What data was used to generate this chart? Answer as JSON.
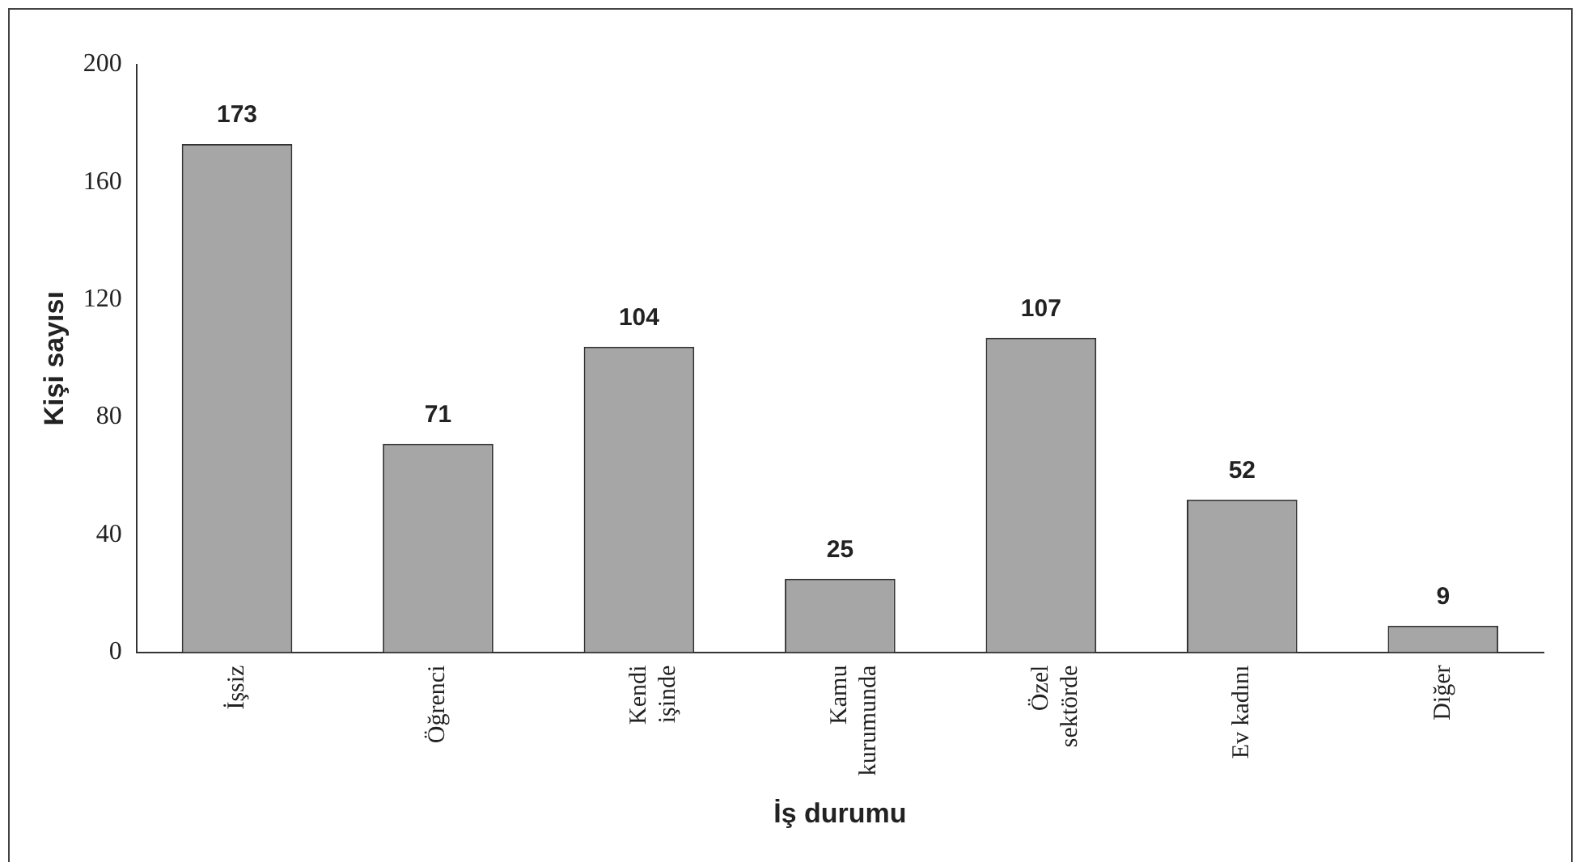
{
  "chart_data": {
    "type": "bar",
    "xlabel": "İş durumu",
    "ylabel": "Kişi sayısı",
    "categories": [
      "İşsiz",
      "Öğrenci",
      "Kendi\nişinde",
      "Kamu\nkurumunda",
      "Özel\nsektörde",
      "Ev kadını",
      "Diğer"
    ],
    "values": [
      173,
      71,
      104,
      25,
      107,
      52,
      9
    ],
    "color": "#a6a6a6",
    "ylim": [
      0,
      200
    ],
    "yticks": [
      0,
      40,
      80,
      120,
      160,
      200
    ],
    "grid": false,
    "legend": false,
    "data_labels": true
  }
}
